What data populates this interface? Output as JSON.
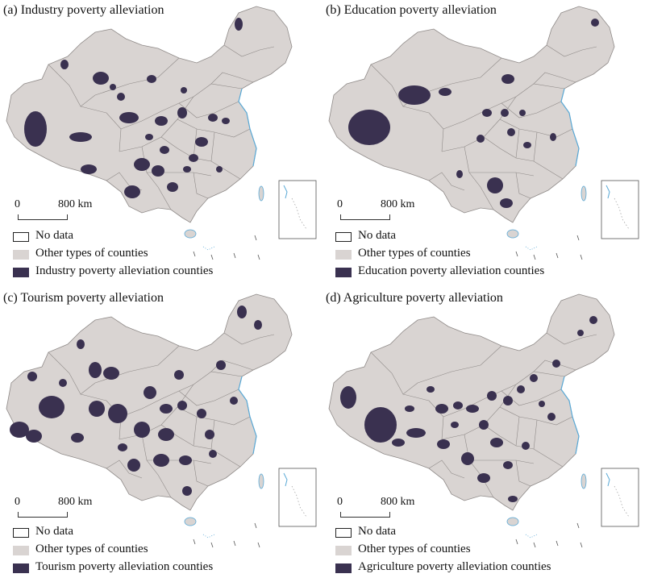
{
  "colors": {
    "no_data": "#ffffff",
    "other_counties": "#d9d4d2",
    "target_counties": "#3a3150",
    "boundary": "#8f8a88",
    "coast": "#5aa9d6"
  },
  "scale_bar": {
    "zero_label": "0",
    "distance_label": "800 km"
  },
  "legend_common": {
    "no_data": "No data",
    "other": "Other types of counties"
  },
  "panels": [
    {
      "id": "a",
      "title": "(a) Industry poverty alleviation",
      "legend_label": "Industry poverty alleviation counties"
    },
    {
      "id": "b",
      "title": "(b) Education poverty alleviation",
      "legend_label": "Education poverty alleviation counties"
    },
    {
      "id": "c",
      "title": "(c) Tourism poverty alleviation",
      "legend_label": "Tourism poverty alleviation counties"
    },
    {
      "id": "d",
      "title": "(d) Agriculture poverty alleviation",
      "legend_label": "Agriculture poverty alleviation counties"
    }
  ]
}
